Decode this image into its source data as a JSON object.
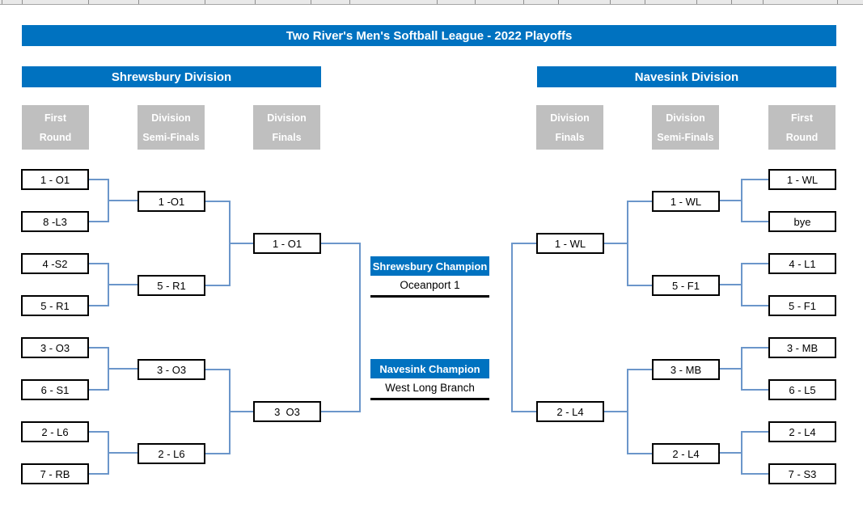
{
  "title": "Two River's Men's Softball League - 2022 Playoffs",
  "divisions": [
    {
      "name": "Shrewsbury Division",
      "round_headers": [
        [
          "First",
          "Round"
        ],
        [
          "Division",
          "Semi-Finals"
        ],
        [
          "Division",
          "Finals"
        ]
      ],
      "first_round": [
        "1 - O1",
        "8 -L3",
        "4 -S2",
        "5 - R1",
        "3 - O3",
        "6 - S1",
        "2 - L6",
        "7 - RB"
      ],
      "semi_finals": [
        "1 -O1",
        "5 - R1",
        "3 - O3",
        "2 - L6"
      ],
      "finals": [
        "1 - O1",
        "3  O3"
      ]
    },
    {
      "name": "Navesink Division",
      "round_headers": [
        [
          "Division",
          "Finals"
        ],
        [
          "Division",
          "Semi-Finals"
        ],
        [
          "First",
          "Round"
        ]
      ],
      "first_round": [
        "1 - WL",
        "bye",
        "4 - L1",
        "5 - F1",
        "3 - MB",
        "6 - L5",
        "2 - L4",
        "7 - S3"
      ],
      "semi_finals": [
        "1 - WL",
        "5 - F1",
        "3 - MB",
        "2 - L4"
      ],
      "finals": [
        "1 - WL",
        "2 - L4"
      ]
    }
  ],
  "champions": [
    {
      "label": "Shrewsbury Champion",
      "team": "Oceanport 1"
    },
    {
      "label": "Navesink Champion",
      "team": "West Long Branch"
    }
  ],
  "colors": {
    "banner_blue": "#0072c0",
    "header_gray": "#bfbfbf",
    "connector_blue": "#6b96ca"
  }
}
